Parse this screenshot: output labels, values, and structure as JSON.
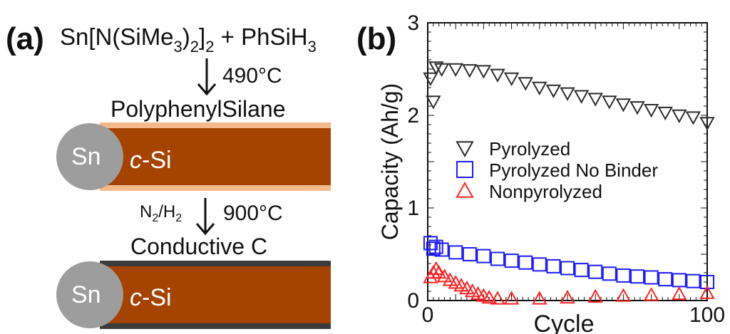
{
  "panel_a": {
    "label": "(a)",
    "reaction": {
      "prefix": "Sn[N(SiMe",
      "sub1": "3",
      "mid1": ")",
      "sub2": "2",
      "mid2": "]",
      "sub3": "2",
      "suffix": " + PhSiH",
      "sub4": "3"
    },
    "step1_temperature": "490°C",
    "coating1_label": "PolyphenylSilane",
    "core_label": "Sn",
    "shell_label_italic": "c",
    "shell_label_rest": "-Si",
    "step2_gas": {
      "n": "N",
      "n_sub": "2",
      "sep": "/H",
      "h_sub": "2"
    },
    "step2_temperature": "900°C",
    "coating2_label": "Conductive C",
    "colors": {
      "rod": "#a54300",
      "sn": "#9d9d9d",
      "coating1": "#f3b98a",
      "coating2": "#3b3b3b"
    }
  },
  "panel_b": {
    "label": "(b)"
  },
  "chart_data": {
    "type": "scatter",
    "xlabel": "Cycle",
    "ylabel": "Capacity (Ah/g)",
    "xlim": [
      0,
      100
    ],
    "ylim": [
      0,
      3
    ],
    "x_ticks": [
      "0",
      "100"
    ],
    "y_ticks": [
      "0",
      "1",
      "2",
      "3"
    ],
    "legend_position": "center-right",
    "series": [
      {
        "name": "Pyrolyzed",
        "marker": "triangle-down",
        "color": "#2b2b2b",
        "x": [
          1,
          2,
          3,
          5,
          10,
          15,
          20,
          25,
          30,
          35,
          40,
          45,
          50,
          55,
          60,
          65,
          70,
          75,
          80,
          85,
          90,
          95,
          100
        ],
        "y": [
          2.4,
          2.15,
          2.52,
          2.5,
          2.5,
          2.49,
          2.48,
          2.44,
          2.4,
          2.35,
          2.3,
          2.27,
          2.24,
          2.21,
          2.18,
          2.15,
          2.12,
          2.09,
          2.06,
          2.03,
          2.0,
          1.98,
          1.92
        ]
      },
      {
        "name": "Pyrolyzed No Binder",
        "marker": "square",
        "color": "#1c1cff",
        "x": [
          1,
          2,
          3,
          5,
          10,
          15,
          20,
          25,
          30,
          35,
          40,
          45,
          50,
          55,
          60,
          65,
          70,
          75,
          80,
          85,
          90,
          95,
          100
        ],
        "y": [
          0.62,
          0.56,
          0.58,
          0.55,
          0.52,
          0.5,
          0.48,
          0.45,
          0.43,
          0.41,
          0.39,
          0.37,
          0.35,
          0.33,
          0.31,
          0.29,
          0.27,
          0.26,
          0.25,
          0.23,
          0.22,
          0.21,
          0.2
        ]
      },
      {
        "name": "Nonpyrolyzed",
        "marker": "triangle-up",
        "color": "#ff2222",
        "x": [
          1,
          2,
          3,
          4,
          6,
          8,
          10,
          12,
          14,
          16,
          18,
          20,
          22,
          25,
          30,
          40,
          50,
          60,
          70,
          80,
          90,
          100
        ],
        "y": [
          0.25,
          0.3,
          0.34,
          0.3,
          0.26,
          0.22,
          0.19,
          0.16,
          0.13,
          0.1,
          0.07,
          0.05,
          0.03,
          0.02,
          0.02,
          0.02,
          0.03,
          0.04,
          0.05,
          0.06,
          0.07,
          0.08
        ]
      }
    ]
  }
}
